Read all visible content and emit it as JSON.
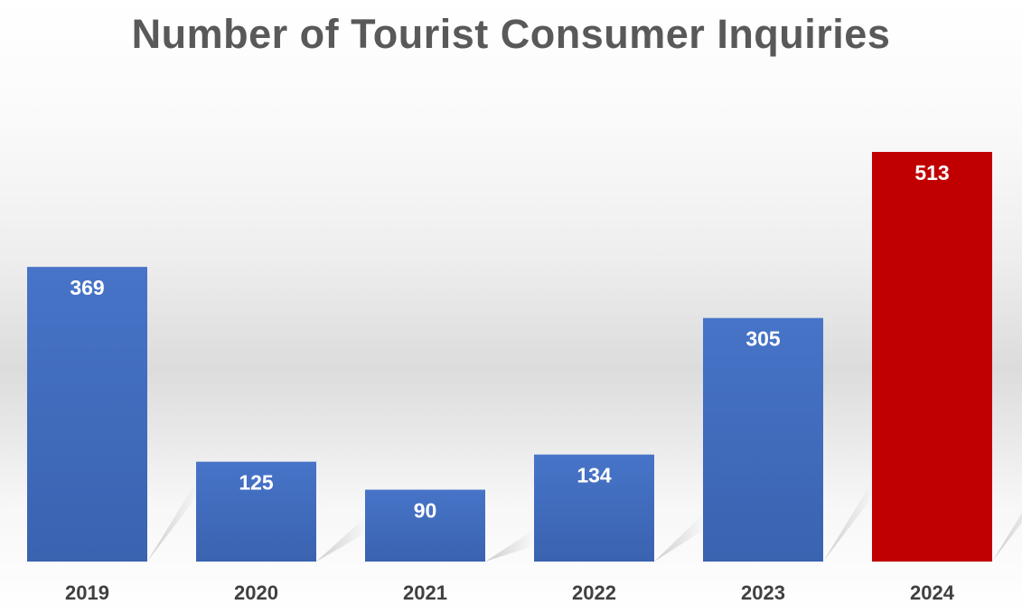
{
  "chart_data": {
    "type": "bar",
    "title": "Number of Tourist Consumer Inquiries",
    "xlabel": "",
    "ylabel": "",
    "categories": [
      "2019",
      "2020",
      "2021",
      "2022",
      "2023",
      "2024"
    ],
    "values": [
      369,
      125,
      90,
      134,
      305,
      513
    ],
    "data_labels": [
      "369",
      "125",
      "90",
      "134",
      "305",
      "513"
    ],
    "bar_colors": [
      "#4472C4",
      "#4472C4",
      "#4472C4",
      "#4472C4",
      "#4472C4",
      "#C00000"
    ],
    "ylim": [
      0,
      513
    ],
    "grid": false,
    "legend": "none"
  }
}
